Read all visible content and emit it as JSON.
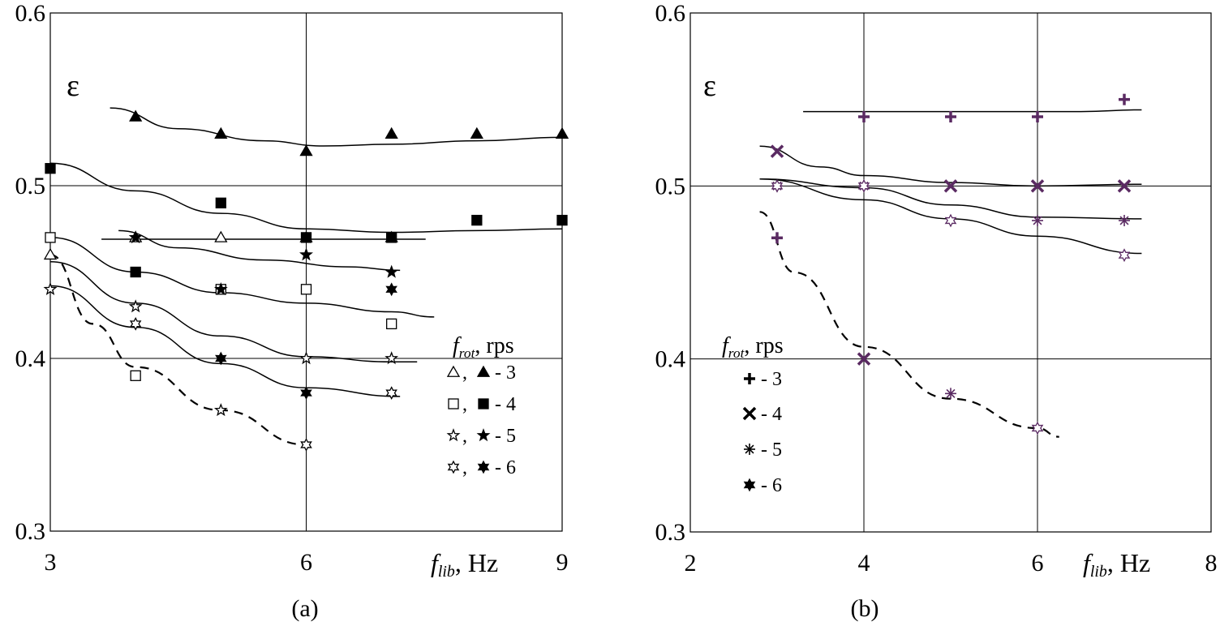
{
  "chart_data": [
    {
      "id": "a",
      "type": "scatter",
      "panel_label": "(a)",
      "ylabel": "ε",
      "xlabel_main": "f",
      "xlabel_sub": "lib",
      "xlabel_unit": ", Hz",
      "xlim": [
        3,
        9
      ],
      "ylim": [
        0.3,
        0.6
      ],
      "xticks": [
        3,
        6,
        9
      ],
      "yticks": [
        "0.3",
        "0.4",
        "0.5",
        "0.6"
      ],
      "legend_title_main": "f",
      "legend_title_sub": "rot",
      "legend_title_unit": ", rps",
      "legend": [
        {
          "open": "△",
          "filled": "▲",
          "label": " - 3"
        },
        {
          "open": "□",
          "filled": "■",
          "label": " - 4"
        },
        {
          "open": "☆",
          "filled": "★",
          "label": " - 5"
        },
        {
          "open": "✡",
          "filled": "✶",
          "label": " - 6"
        }
      ],
      "series": [
        {
          "name": "3 rps filled",
          "marker": "triangle-filled",
          "x": [
            4,
            5,
            6,
            7,
            8,
            9
          ],
          "y": [
            0.54,
            0.53,
            0.52,
            0.53,
            0.53,
            0.53
          ]
        },
        {
          "name": "3 rps open",
          "marker": "triangle-open",
          "x": [
            3,
            4,
            5,
            6,
            7
          ],
          "y": [
            0.46,
            0.47,
            0.47,
            0.47,
            0.47
          ]
        },
        {
          "name": "4 rps filled",
          "marker": "square-filled",
          "x": [
            3,
            4,
            5,
            6,
            7,
            8,
            9
          ],
          "y": [
            0.51,
            0.45,
            0.49,
            0.47,
            0.47,
            0.48,
            0.48
          ]
        },
        {
          "name": "4 rps open",
          "marker": "square-open",
          "x": [
            3,
            4,
            5,
            6,
            7
          ],
          "y": [
            0.47,
            0.39,
            0.44,
            0.44,
            0.42
          ]
        },
        {
          "name": "5 rps filled",
          "marker": "star-filled",
          "x": [
            4,
            5,
            6,
            7
          ],
          "y": [
            0.47,
            0.44,
            0.46,
            0.45
          ]
        },
        {
          "name": "5 rps open",
          "marker": "star-open",
          "x": [
            3,
            4,
            5,
            6,
            7
          ],
          "y": [
            0.44,
            0.43,
            0.37,
            0.4,
            0.4
          ]
        },
        {
          "name": "6 rps filled",
          "marker": "hexstar-filled",
          "x": [
            5,
            6,
            7
          ],
          "y": [
            0.4,
            0.38,
            0.44
          ]
        },
        {
          "name": "6 rps open",
          "marker": "hexstar-open",
          "x": [
            4,
            6,
            7
          ],
          "y": [
            0.42,
            0.35,
            0.38
          ]
        }
      ],
      "curves": [
        {
          "style": "solid",
          "x": [
            3.7,
            4.5,
            5.5,
            6.2,
            7,
            8,
            9
          ],
          "y": [
            0.545,
            0.533,
            0.526,
            0.523,
            0.524,
            0.526,
            0.528
          ]
        },
        {
          "style": "solid",
          "x": [
            3,
            4,
            5,
            6,
            7,
            8,
            9
          ],
          "y": [
            0.513,
            0.497,
            0.484,
            0.475,
            0.473,
            0.474,
            0.475
          ]
        },
        {
          "style": "solid",
          "x": [
            3.6,
            7.4
          ],
          "y": [
            0.469,
            0.469
          ]
        },
        {
          "style": "solid",
          "x": [
            3.8,
            4.5,
            5.5,
            6.5,
            7.1
          ],
          "y": [
            0.474,
            0.464,
            0.457,
            0.453,
            0.451
          ]
        },
        {
          "style": "solid",
          "x": [
            3,
            4,
            5,
            6,
            7,
            7.5
          ],
          "y": [
            0.47,
            0.45,
            0.438,
            0.432,
            0.427,
            0.424
          ]
        },
        {
          "style": "solid",
          "x": [
            3,
            4,
            5,
            6,
            7,
            7.3
          ],
          "y": [
            0.456,
            0.432,
            0.413,
            0.401,
            0.398,
            0.398
          ]
        },
        {
          "style": "solid",
          "x": [
            3,
            4,
            5,
            6,
            7.1
          ],
          "y": [
            0.442,
            0.418,
            0.397,
            0.383,
            0.378
          ]
        },
        {
          "style": "dashed",
          "x": [
            3,
            3.5,
            4,
            5,
            6
          ],
          "y": [
            0.46,
            0.42,
            0.395,
            0.37,
            0.35
          ]
        }
      ]
    },
    {
      "id": "b",
      "type": "scatter",
      "panel_label": "(b)",
      "ylabel": "ε",
      "xlabel_main": "f",
      "xlabel_sub": "lib",
      "xlabel_unit": ", Hz",
      "xlim": [
        2,
        8
      ],
      "ylim": [
        0.3,
        0.6
      ],
      "xticks": [
        2,
        4,
        6,
        8
      ],
      "yticks": [
        "0.3",
        "0.4",
        "0.5",
        "0.6"
      ],
      "legend_title_main": "f",
      "legend_title_sub": "rot",
      "legend_title_unit": ", rps",
      "legend": [
        {
          "symbol": "✚",
          "label": " - 3"
        },
        {
          "symbol": "✖",
          "label": " - 4"
        },
        {
          "symbol": "✳",
          "label": " - 5"
        },
        {
          "symbol": "✶",
          "label": " - 6"
        }
      ],
      "series": [
        {
          "name": "3 rps",
          "marker": "plus",
          "x": [
            3,
            4,
            5,
            6,
            7
          ],
          "y": [
            0.47,
            0.54,
            0.54,
            0.54,
            0.55
          ]
        },
        {
          "name": "4 rps",
          "marker": "cross",
          "x": [
            3,
            4,
            5,
            6,
            7
          ],
          "y": [
            0.52,
            0.4,
            0.5,
            0.5,
            0.5
          ]
        },
        {
          "name": "5 rps",
          "marker": "asterisk",
          "x": [
            3,
            4,
            5,
            6,
            7
          ],
          "y": [
            0.5,
            0.5,
            0.38,
            0.48,
            0.48
          ]
        },
        {
          "name": "6 rps",
          "marker": "hexstar",
          "x": [
            3,
            4,
            5,
            6,
            7
          ],
          "y": [
            0.5,
            0.5,
            0.48,
            0.36,
            0.46
          ]
        }
      ],
      "curves": [
        {
          "style": "solid",
          "x": [
            3.3,
            4.5,
            5.5,
            6.5,
            7.2
          ],
          "y": [
            0.543,
            0.543,
            0.543,
            0.543,
            0.544
          ]
        },
        {
          "style": "solid",
          "x": [
            2.8,
            3.5,
            4,
            5,
            6,
            7.2
          ],
          "y": [
            0.523,
            0.511,
            0.506,
            0.502,
            0.5,
            0.501
          ]
        },
        {
          "style": "solid",
          "x": [
            2.8,
            4,
            5,
            6,
            7.2
          ],
          "y": [
            0.504,
            0.499,
            0.489,
            0.482,
            0.481
          ]
        },
        {
          "style": "solid",
          "x": [
            2.8,
            4,
            5,
            6,
            7.2
          ],
          "y": [
            0.504,
            0.492,
            0.481,
            0.471,
            0.461
          ]
        },
        {
          "style": "dashed",
          "x": [
            2.8,
            3.2,
            4,
            5,
            6,
            6.25
          ],
          "y": [
            0.485,
            0.45,
            0.407,
            0.377,
            0.36,
            0.355
          ]
        }
      ]
    }
  ]
}
